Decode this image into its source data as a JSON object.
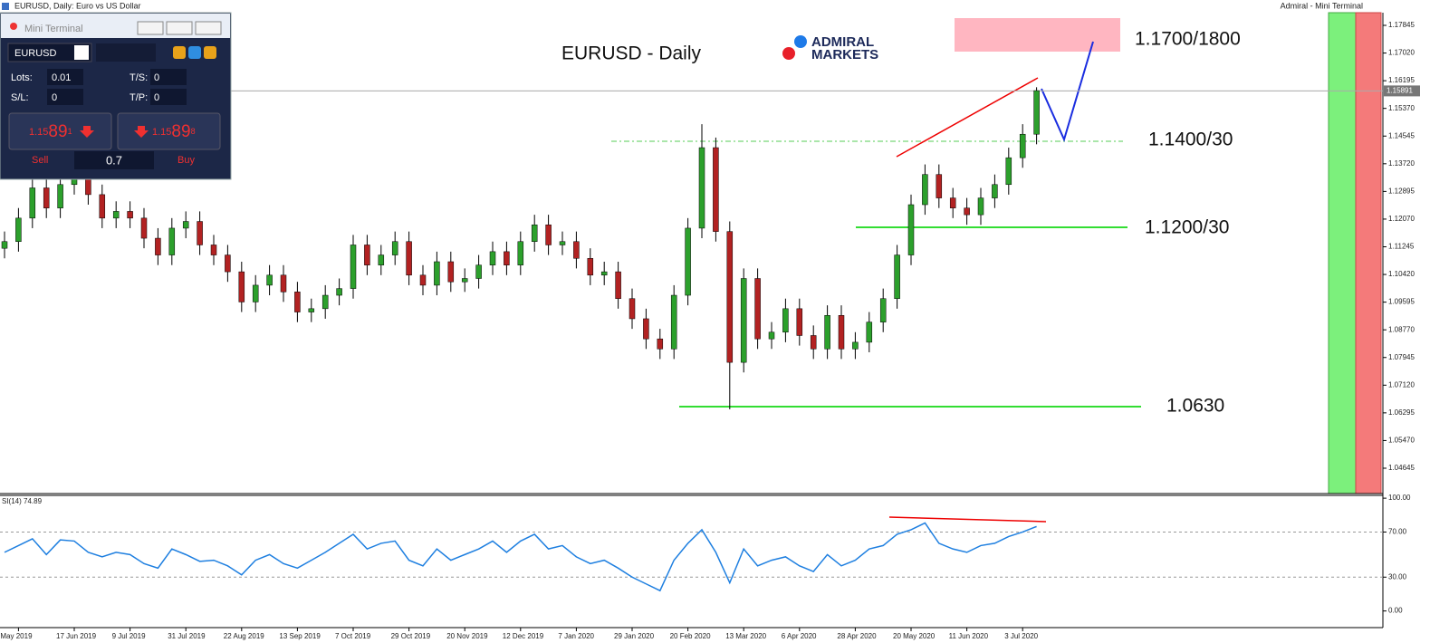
{
  "title_bar": {
    "left": "EURUSD, Daily:  Euro vs US Dollar",
    "right": "Admiral - Mini Terminal"
  },
  "mini_terminal": {
    "title": "Mini Terminal",
    "symbol": "EURUSD",
    "lots_label": "Lots:",
    "lots": "0.01",
    "ts_label": "T/S:",
    "ts": "0",
    "sl_label": "S/L:",
    "sl": "0",
    "tp_label": "T/P:",
    "tp": "0",
    "sell_price": {
      "prefix": "1.15",
      "big": "89",
      "suffix": "1"
    },
    "buy_price": {
      "prefix": "1.15",
      "big": "89",
      "suffix": "8"
    },
    "sell": "Sell",
    "spread": "0.7",
    "buy": "Buy"
  },
  "logo": {
    "line1": "ADMIRAL",
    "line2": "MARKETS"
  },
  "chart_data": [
    {
      "type": "candlestick",
      "title": "EURUSD - Daily",
      "up_color": "#2ca02c",
      "down_color": "#b22222",
      "current_price": 1.15891,
      "annotations": [
        "1.1700/1800",
        "1.1400/30",
        "1.1200/30",
        "1.0630"
      ],
      "categories": [
        null,
        "May 2019",
        null,
        null,
        null,
        "17 Jun 2019",
        null,
        null,
        null,
        "9 Jul 2019",
        null,
        null,
        null,
        "31 Jul 2019",
        null,
        null,
        null,
        "22 Aug 2019",
        null,
        null,
        null,
        "13 Sep 2019",
        null,
        null,
        null,
        "7 Oct 2019",
        null,
        null,
        null,
        "29 Oct 2019",
        null,
        null,
        null,
        "20 Nov 2019",
        null,
        null,
        null,
        "12 Dec 2019",
        null,
        null,
        null,
        "7 Jan 2020",
        null,
        null,
        null,
        "29 Jan 2020",
        null,
        null,
        null,
        "20 Feb 2020",
        null,
        null,
        null,
        "13 Mar 2020",
        null,
        null,
        null,
        "6 Apr 2020",
        null,
        null,
        null,
        "28 Apr 2020",
        null,
        null,
        null,
        "20 May 2020",
        null,
        null,
        null,
        "11 Jun 2020",
        null,
        null,
        null,
        "3 Jul 2020",
        null
      ],
      "open": [
        1.112,
        1.114,
        1.121,
        1.13,
        1.124,
        1.131,
        1.134,
        1.128,
        1.121,
        1.123,
        1.121,
        1.115,
        1.11,
        1.118,
        1.12,
        1.113,
        1.11,
        1.105,
        1.096,
        1.101,
        1.104,
        1.099,
        1.093,
        1.094,
        1.098,
        1.1,
        1.113,
        1.107,
        1.11,
        1.114,
        1.104,
        1.101,
        1.108,
        1.102,
        1.103,
        1.107,
        1.111,
        1.107,
        1.114,
        1.119,
        1.113,
        1.114,
        1.109,
        1.104,
        1.105,
        1.097,
        1.091,
        1.085,
        1.082,
        1.098,
        1.118,
        1.142,
        1.117,
        1.078,
        1.103,
        1.085,
        1.087,
        1.094,
        1.086,
        1.082,
        1.092,
        1.082,
        1.084,
        1.09,
        1.097,
        1.11,
        1.125,
        1.134,
        1.127,
        1.124,
        1.122,
        1.127,
        1.131,
        1.139,
        1.146
      ],
      "high": [
        1.117,
        1.124,
        1.133,
        1.133,
        1.134,
        1.137,
        1.137,
        1.131,
        1.126,
        1.126,
        1.124,
        1.118,
        1.121,
        1.123,
        1.123,
        1.116,
        1.113,
        1.108,
        1.104,
        1.107,
        1.107,
        1.102,
        1.097,
        1.101,
        1.103,
        1.116,
        1.116,
        1.113,
        1.117,
        1.117,
        1.107,
        1.111,
        1.111,
        1.106,
        1.11,
        1.114,
        1.114,
        1.117,
        1.122,
        1.122,
        1.117,
        1.117,
        1.112,
        1.108,
        1.108,
        1.1,
        1.094,
        1.088,
        1.101,
        1.121,
        1.149,
        1.145,
        1.12,
        1.106,
        1.106,
        1.09,
        1.097,
        1.097,
        1.089,
        1.095,
        1.095,
        1.087,
        1.093,
        1.1,
        1.113,
        1.128,
        1.137,
        1.137,
        1.13,
        1.127,
        1.13,
        1.134,
        1.142,
        1.149,
        1.16
      ],
      "low": [
        1.109,
        1.111,
        1.118,
        1.121,
        1.121,
        1.128,
        1.125,
        1.118,
        1.118,
        1.118,
        1.112,
        1.107,
        1.107,
        1.115,
        1.11,
        1.107,
        1.102,
        1.093,
        1.093,
        1.098,
        1.096,
        1.09,
        1.09,
        1.091,
        1.095,
        1.097,
        1.104,
        1.104,
        1.107,
        1.101,
        1.098,
        1.098,
        1.099,
        1.099,
        1.1,
        1.104,
        1.104,
        1.104,
        1.111,
        1.11,
        1.11,
        1.106,
        1.101,
        1.101,
        1.094,
        1.088,
        1.082,
        1.079,
        1.079,
        1.095,
        1.115,
        1.114,
        1.064,
        1.075,
        1.082,
        1.082,
        1.084,
        1.083,
        1.079,
        1.079,
        1.079,
        1.079,
        1.081,
        1.087,
        1.094,
        1.107,
        1.122,
        1.124,
        1.121,
        1.119,
        1.119,
        1.124,
        1.128,
        1.136,
        1.143
      ],
      "close": [
        1.114,
        1.121,
        1.13,
        1.124,
        1.131,
        1.134,
        1.128,
        1.121,
        1.123,
        1.121,
        1.115,
        1.11,
        1.118,
        1.12,
        1.113,
        1.11,
        1.105,
        1.096,
        1.101,
        1.104,
        1.099,
        1.093,
        1.094,
        1.098,
        1.1,
        1.113,
        1.107,
        1.11,
        1.114,
        1.104,
        1.101,
        1.108,
        1.102,
        1.103,
        1.107,
        1.111,
        1.107,
        1.114,
        1.119,
        1.113,
        1.114,
        1.109,
        1.104,
        1.105,
        1.097,
        1.091,
        1.085,
        1.082,
        1.098,
        1.118,
        1.142,
        1.117,
        1.078,
        1.103,
        1.085,
        1.087,
        1.094,
        1.086,
        1.082,
        1.092,
        1.082,
        1.084,
        1.09,
        1.097,
        1.11,
        1.125,
        1.134,
        1.127,
        1.124,
        1.122,
        1.127,
        1.131,
        1.139,
        1.146,
        1.159
      ],
      "ylim": [
        1.03889,
        1.18223
      ],
      "yticks": [
        1.17845,
        {
          "value": 1.1702,
          "label": "1.17020"
        },
        1.16195,
        {
          "value": 1.1537,
          "label": "1.15370"
        },
        1.14545,
        {
          "value": 1.1372,
          "label": "1.13720"
        },
        1.12895,
        {
          "value": 1.1207,
          "label": "1.12070"
        },
        1.11245,
        {
          "value": 1.1042,
          "label": "1.10420"
        },
        1.09595,
        {
          "value": 1.0877,
          "label": "1.08770"
        },
        1.07945,
        {
          "value": 1.0712,
          "label": "1.07120"
        },
        1.06295,
        {
          "value": 1.0547,
          "label": "1.05470"
        },
        1.04645
      ]
    },
    {
      "type": "line",
      "label": "SI(14) 74.89",
      "color": "#1e7fe0",
      "values": [
        52,
        58,
        64,
        50,
        63,
        62,
        52,
        48,
        52,
        50,
        42,
        38,
        55,
        50,
        44,
        45,
        40,
        32,
        45,
        50,
        42,
        38,
        45,
        52,
        60,
        68,
        55,
        60,
        62,
        45,
        40,
        55,
        45,
        50,
        55,
        62,
        52,
        62,
        68,
        55,
        58,
        48,
        42,
        45,
        38,
        30,
        24,
        18,
        45,
        60,
        72,
        52,
        25,
        55,
        40,
        45,
        48,
        40,
        35,
        50,
        40,
        45,
        55,
        58,
        68,
        72,
        78,
        60,
        55,
        52,
        58,
        60,
        66,
        70,
        74.89
      ],
      "ylim": [
        -14.75,
        102.5
      ],
      "yticks": [
        {
          "value": 100,
          "label": "100.00"
        },
        {
          "value": 70,
          "label": "70.00"
        },
        {
          "value": 30,
          "label": "30.00"
        },
        {
          "value": 0,
          "label": "0.00"
        }
      ]
    }
  ]
}
